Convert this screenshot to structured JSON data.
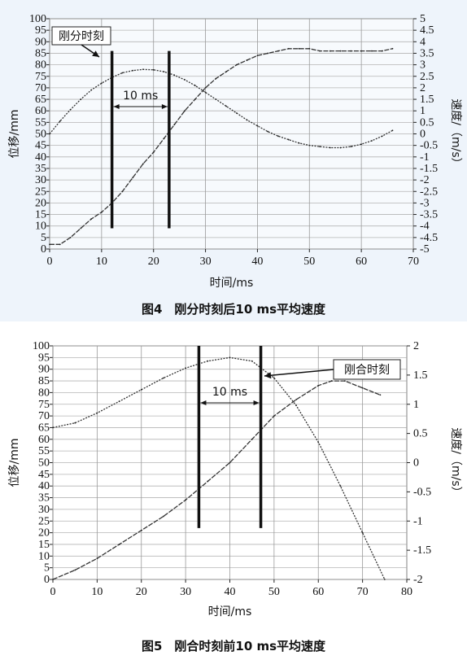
{
  "chart_data": [
    {
      "type": "line",
      "caption": "图4　刚分时刻后10 ms平均速度",
      "xlabel": "时间/ms",
      "ylabel_left": "位移/mm",
      "ylabel_right": "速度/（m/s）",
      "xlim": [
        0,
        70
      ],
      "ylim_left": [
        0,
        100
      ],
      "ylim_right": [
        -5,
        5
      ],
      "xticks": [
        0,
        10,
        20,
        30,
        40,
        50,
        60,
        70
      ],
      "yticks_left": [
        0,
        5,
        10,
        15,
        20,
        25,
        30,
        35,
        40,
        45,
        50,
        55,
        60,
        65,
        70,
        75,
        80,
        85,
        90,
        95,
        100
      ],
      "yticks_right": [
        "-5",
        "-4.5",
        "-4",
        "-3.5",
        "-3",
        "-2.5",
        "-2",
        "-1.5",
        "-1",
        "-0.5",
        "0",
        "0.5",
        "1",
        "1.5",
        "2",
        "2.5",
        "3",
        "3.5",
        "4",
        "4.5",
        "5"
      ],
      "annotation": "刚分时刻",
      "interval_label": "10 ms",
      "markers_x": [
        12,
        23
      ],
      "marker_yrange": [
        9,
        86
      ],
      "series": [
        {
          "axis": "left",
          "x": [
            0,
            2,
            4,
            6,
            8,
            10,
            12,
            14,
            16,
            18,
            20,
            22,
            24,
            26,
            28,
            30,
            32,
            34,
            36,
            38,
            40,
            42,
            44,
            46,
            48,
            50,
            52,
            54,
            56,
            58,
            60,
            62,
            64,
            66
          ],
          "values": [
            2,
            2,
            5,
            9,
            13,
            16,
            20,
            25,
            31,
            37,
            42,
            48,
            54,
            60,
            65,
            70,
            74,
            77,
            80,
            82,
            84,
            85,
            86,
            87,
            87,
            87,
            86,
            86,
            86,
            86,
            86,
            86,
            86,
            87
          ]
        },
        {
          "axis": "right",
          "x": [
            0,
            2,
            4,
            6,
            8,
            10,
            12,
            14,
            16,
            18,
            20,
            22,
            24,
            26,
            28,
            30,
            32,
            34,
            36,
            38,
            40,
            42,
            44,
            46,
            48,
            50,
            52,
            54,
            56,
            58,
            60,
            62,
            64,
            66
          ],
          "values": [
            0,
            0.55,
            1.05,
            1.5,
            1.9,
            2.2,
            2.45,
            2.65,
            2.75,
            2.8,
            2.78,
            2.7,
            2.55,
            2.35,
            2.1,
            1.8,
            1.5,
            1.2,
            0.9,
            0.6,
            0.35,
            0.1,
            -0.1,
            -0.25,
            -0.4,
            -0.5,
            -0.55,
            -0.6,
            -0.6,
            -0.55,
            -0.45,
            -0.3,
            -0.1,
            0.15
          ]
        }
      ]
    },
    {
      "type": "line",
      "caption": "图5　刚合时刻前10 ms平均速度",
      "xlabel": "时间/ms",
      "ylabel_left": "位移/mm",
      "ylabel_right": "速度/（m/s）",
      "xlim": [
        0,
        80
      ],
      "ylim_left": [
        0,
        100
      ],
      "ylim_right": [
        -2,
        2
      ],
      "xticks": [
        0,
        10,
        20,
        30,
        40,
        50,
        60,
        70,
        80
      ],
      "yticks_left": [
        0,
        5,
        10,
        15,
        20,
        25,
        30,
        35,
        40,
        45,
        50,
        55,
        60,
        65,
        70,
        75,
        80,
        85,
        90,
        95,
        100
      ],
      "yticks_right": [
        "-2",
        "-1.5",
        "-1",
        "-0.5",
        "0",
        "0.5",
        "1",
        "1.5",
        "2"
      ],
      "annotation": "刚合时刻",
      "interval_label": "10 ms",
      "markers_x": [
        33,
        47
      ],
      "marker_yrange": [
        22,
        100
      ],
      "series": [
        {
          "axis": "left",
          "x": [
            0,
            5,
            10,
            15,
            20,
            25,
            30,
            35,
            40,
            45,
            50,
            55,
            60,
            63,
            66,
            70,
            74
          ],
          "values": [
            0,
            4,
            9,
            15,
            21,
            27,
            34,
            42,
            50,
            60,
            70,
            77,
            83,
            85,
            85,
            82,
            79
          ]
        },
        {
          "axis": "right",
          "x": [
            0,
            5,
            10,
            15,
            20,
            25,
            30,
            35,
            40,
            45,
            50,
            55,
            60,
            65,
            70,
            75
          ],
          "values": [
            0.6,
            0.68,
            0.85,
            1.05,
            1.25,
            1.45,
            1.62,
            1.74,
            1.8,
            1.74,
            1.45,
            0.98,
            0.35,
            -0.4,
            -1.2,
            -2.0
          ]
        }
      ]
    }
  ]
}
